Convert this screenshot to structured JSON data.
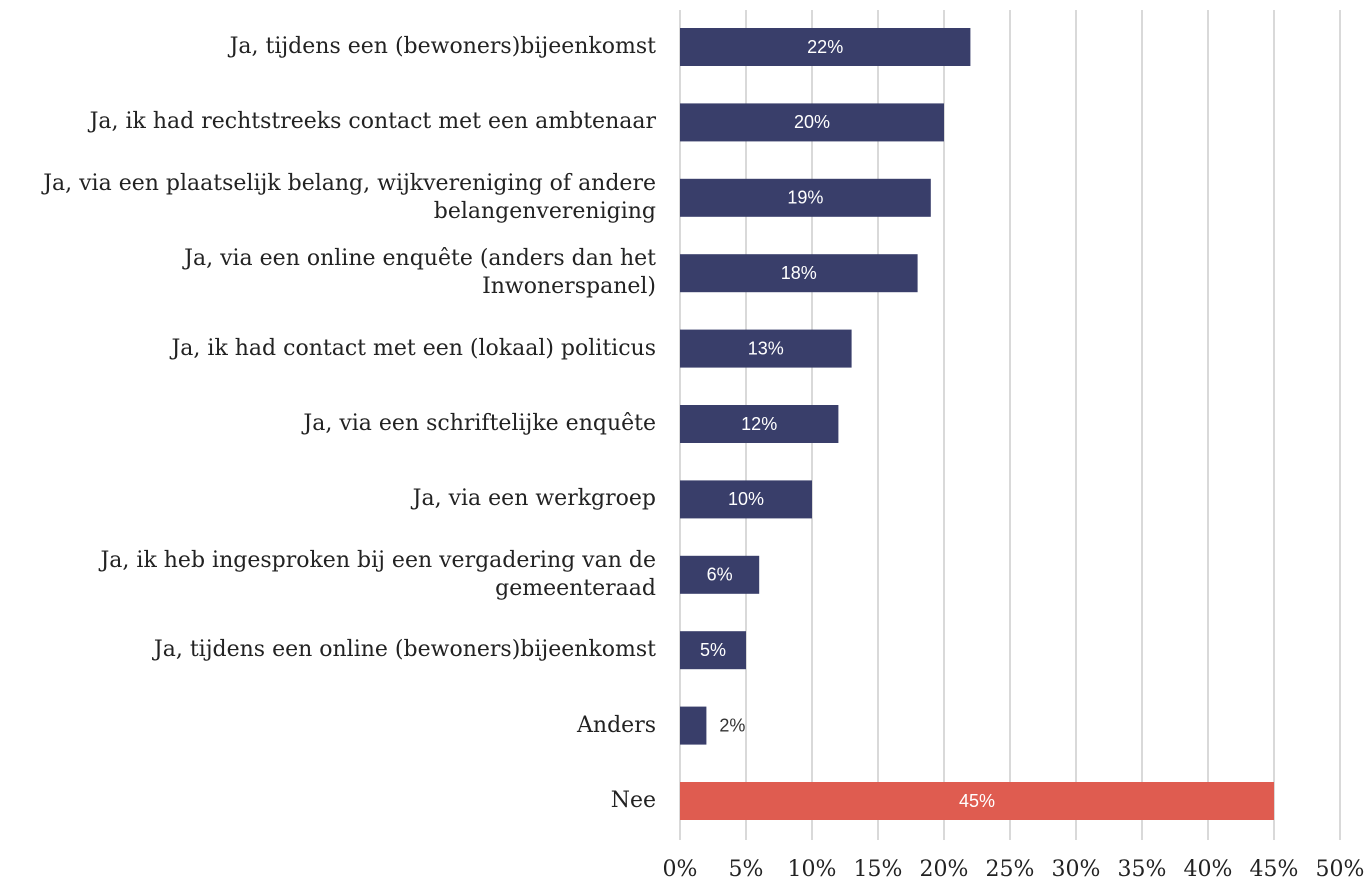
{
  "chart_data": {
    "type": "barh",
    "categories": [
      "Ja, tijdens een (bewoners)bijeenkomst",
      "Ja, ik had rechtstreeks contact met een ambtenaar",
      "Ja, via een plaatselijk belang, wijkvereniging of andere belangenvereniging",
      "Ja, via een online enquête (anders dan het Inwonerspanel)",
      "Ja, ik had contact met een (lokaal) politicus",
      "Ja, via een schriftelijke enquête",
      "Ja, via een werkgroep",
      "Ja, ik heb ingesproken bij een vergadering van de gemeenteraad",
      "Ja, tijdens een online (bewoners)bijeenkomst",
      "Anders",
      "Nee"
    ],
    "values": [
      22,
      20,
      19,
      18,
      13,
      12,
      10,
      6,
      5,
      2,
      45
    ],
    "value_labels": [
      "22%",
      "20%",
      "19%",
      "18%",
      "13%",
      "12%",
      "10%",
      "6%",
      "5%",
      "2%",
      "45%"
    ],
    "colors": [
      "#393e6a",
      "#393e6a",
      "#393e6a",
      "#393e6a",
      "#393e6a",
      "#393e6a",
      "#393e6a",
      "#393e6a",
      "#393e6a",
      "#393e6a",
      "#df5c50"
    ],
    "xlim": [
      0,
      50
    ],
    "xticks": [
      {
        "value": 0,
        "label": "0%"
      },
      {
        "value": 5,
        "label": "5%"
      },
      {
        "value": 10,
        "label": "10%"
      },
      {
        "value": 15,
        "label": "15%"
      },
      {
        "value": 20,
        "label": "20%"
      },
      {
        "value": 25,
        "label": "25%"
      },
      {
        "value": 30,
        "label": "30%"
      },
      {
        "value": 35,
        "label": "35%"
      },
      {
        "value": 40,
        "label": "40%"
      },
      {
        "value": 45,
        "label": "45%"
      },
      {
        "value": 50,
        "label": "50%"
      }
    ],
    "grid": true
  }
}
